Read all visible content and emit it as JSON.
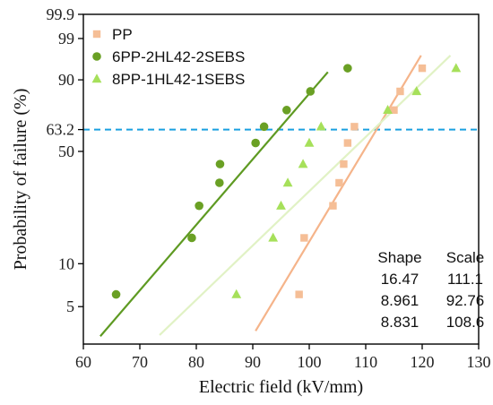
{
  "chart_data": {
    "type": "scatter",
    "xlabel": "Electric field (kV/mm)",
    "ylabel": "Probability of failure (%)",
    "xlim": [
      60,
      130
    ],
    "ylim": [
      2.7,
      99.9
    ],
    "y_scale": "weibull-probability",
    "x_ticks": [
      "60",
      "70",
      "80",
      "90",
      "100",
      "110",
      "120",
      "130"
    ],
    "y_ticks": [
      "5",
      "10",
      "50",
      "63.2",
      "90",
      "99",
      "99.9"
    ],
    "reference_line": {
      "value": 63.2,
      "color": "#1aa0e0",
      "style": "dashed"
    },
    "legend_position": "top-left",
    "series": [
      {
        "name": "PP",
        "marker": "square",
        "color": "#f5be96",
        "line_color": "#f5b48a",
        "x": [
          98.2,
          99.1,
          104.2,
          105.3,
          106.1,
          106.8,
          108.0,
          115.0,
          116.1,
          120.0
        ],
        "y": [
          6.1,
          15.0,
          24.3,
          33.6,
          42.9,
          55.0,
          65.0,
          75.0,
          85.0,
          93.9
        ],
        "fit": {
          "shape": 16.47,
          "scale": 111.1,
          "x_range": [
            90.5,
            119.8
          ]
        }
      },
      {
        "name": "6PP-2HL42-2SEBS",
        "marker": "circle",
        "color": "#6aa024",
        "line_color": "#5e9a22",
        "x": [
          65.8,
          79.2,
          80.5,
          84.1,
          84.2,
          90.5,
          92.0,
          96.0,
          100.2,
          106.8
        ],
        "y": [
          6.1,
          15.0,
          24.3,
          33.6,
          42.9,
          55.0,
          65.0,
          75.0,
          85.0,
          93.9
        ],
        "fit": {
          "shape": 8.961,
          "scale": 92.76,
          "x_range": [
            63.0,
            103.3
          ]
        }
      },
      {
        "name": "8PP-1HL42-1SEBS",
        "marker": "triangle",
        "color": "#a6e05a",
        "line_color": "#e1f2c5",
        "x": [
          87.1,
          93.6,
          95.0,
          96.2,
          98.9,
          100.0,
          102.1,
          113.9,
          119.0,
          126.0
        ],
        "y": [
          6.1,
          15.0,
          24.3,
          33.6,
          42.9,
          55.0,
          65.0,
          75.0,
          85.0,
          93.9
        ],
        "fit": {
          "shape": 8.831,
          "scale": 108.6,
          "x_range": [
            73.5,
            125.0
          ]
        }
      }
    ],
    "table": {
      "headers": [
        "Shape",
        "Scale"
      ],
      "rows": [
        [
          "16.47",
          "111.1"
        ],
        [
          "8.961",
          "92.76"
        ],
        [
          "8.831",
          "108.6"
        ]
      ]
    }
  }
}
